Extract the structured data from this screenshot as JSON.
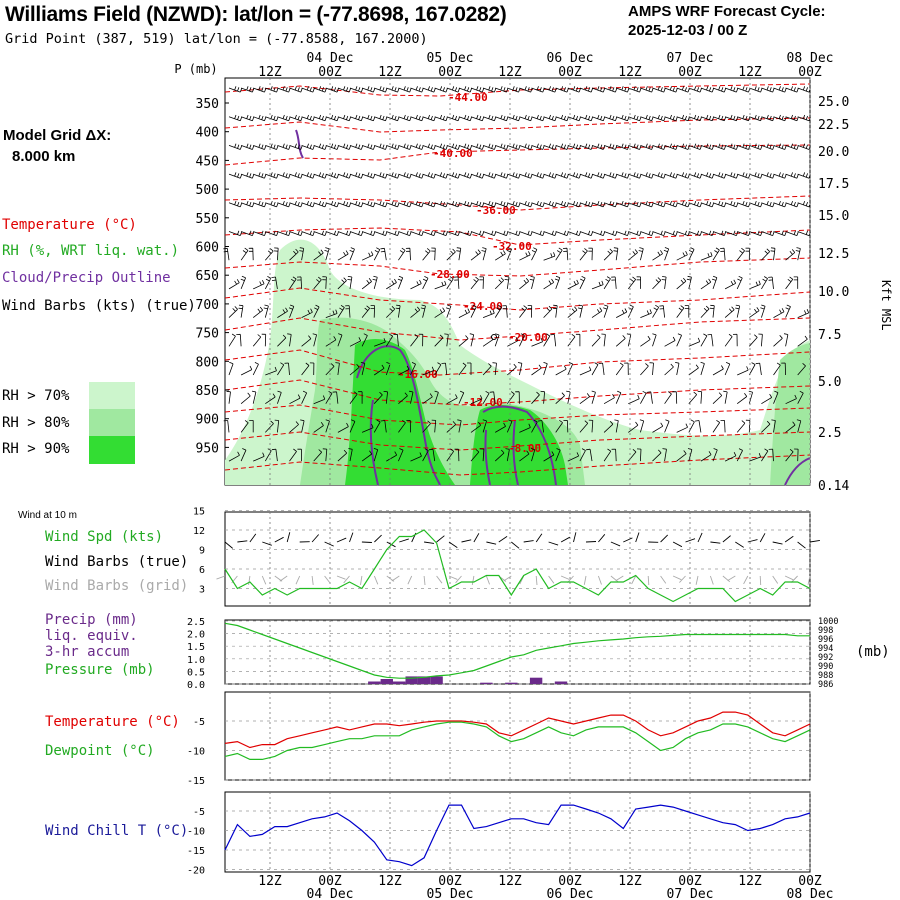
{
  "header": {
    "title": "Williams Field (NZWD):  lat/lon = (-77.8698, 167.0282)",
    "grid_point": "Grid Point (387, 519) lat/lon = (-77.8588, 167.2000)",
    "cycle_label": "AMPS WRF Forecast Cycle:",
    "cycle_value": "2025-12-03 / 00  Z"
  },
  "model_grid": {
    "label": "Model Grid ΔX:",
    "value": "8.000 km"
  },
  "sounding_legend": {
    "temperature": "Temperature (°C)",
    "rh": "RH (%, WRT liq. wat.)",
    "cloud": "Cloud/Precip Outline",
    "wind": "Wind Barbs (kts) (true)",
    "rh70": "RH > 70%",
    "rh80": "RH > 80%",
    "rh90": "RH > 90%"
  },
  "surface_legend": {
    "wind_title": "Wind at 10 m",
    "wind_spd": "Wind Spd (kts)",
    "barbs_true": "Wind Barbs (true)",
    "barbs_grid": "Wind Barbs (grid)",
    "precip1": "Precip (mm)",
    "precip2": "liq. equiv.",
    "precip3": "3-hr accum",
    "pressure": "Pressure (mb)",
    "pressure_unit": "(mb)",
    "temperature": "Temperature (°C)",
    "dewpoint": "Dewpoint (°C)",
    "windchill": "Wind Chill T (°C)"
  },
  "colors": {
    "temperature": "#e00000",
    "rh_green": "#22bb22",
    "rh70": "#ccf5cc",
    "rh80": "#a0e8a0",
    "rh90": "#33dd33",
    "cloud": "#7030a0",
    "wind": "#000000",
    "wind_grid": "#aaaaaa",
    "windchill": "#0000cc",
    "precip": "#6a2a8a",
    "grid": "#888888"
  },
  "chart_data": [
    {
      "type": "heatmap",
      "time_axis": {
        "top_hours": [
          "12Z",
          "00Z",
          "12Z",
          "00Z",
          "12Z",
          "00Z",
          "12Z",
          "00Z",
          "12Z",
          "00Z"
        ],
        "dates": [
          "04 Dec",
          "05 Dec",
          "06 Dec",
          "07 Dec",
          "08 Dec"
        ]
      },
      "y_title": "P (mb)",
      "pressure_levels": [
        350,
        400,
        450,
        500,
        550,
        600,
        650,
        700,
        750,
        800,
        850,
        900,
        950
      ],
      "height_labels": [
        "25.0",
        "22.5",
        "20.0",
        "17.5",
        "15.0",
        "12.5",
        "10.0",
        "7.5",
        "5.0",
        "2.5",
        "0.14"
      ],
      "height_title": "Kft MSL",
      "isotherm_labels": [
        "-44.00",
        "-40.00",
        "-36.00",
        "-32.00",
        "-28.00",
        "-24.00",
        "-20.00",
        "-16.00",
        "-12.00",
        "-8.00"
      ]
    },
    {
      "type": "line",
      "y_ticks": [
        "15",
        "12",
        "9",
        "6",
        "3"
      ],
      "series": [
        {
          "name": "Wind Spd (kts)",
          "values": [
            6,
            3,
            4,
            2,
            3,
            2,
            3,
            3,
            3,
            3,
            4,
            3,
            6,
            9,
            11,
            11,
            12,
            10,
            3,
            4,
            4,
            5,
            5,
            2,
            5,
            6,
            3,
            4,
            4,
            3,
            2,
            4,
            4,
            5,
            3,
            2,
            1,
            2,
            3,
            3,
            3,
            1,
            2,
            3,
            2,
            4,
            4,
            3
          ]
        }
      ]
    },
    {
      "type": "line",
      "y_ticks_left": [
        "2.5",
        "2.0",
        "1.5",
        "1.0",
        "0.5",
        "0.0"
      ],
      "y_ticks_right": [
        "1000",
        "998",
        "996",
        "994",
        "992",
        "990",
        "988",
        "986"
      ],
      "series": [
        {
          "name": "Pressure (mb)",
          "values": [
            999.5,
            999.0,
            998.0,
            997.0,
            996.0,
            995.0,
            994.0,
            993.0,
            992.0,
            991.0,
            990.0,
            989.0,
            988.0,
            987.5,
            987.3,
            987.3,
            987.5,
            987.8,
            988.0,
            988.5,
            989.0,
            990.0,
            991.0,
            992.0,
            992.5,
            993.5,
            994.0,
            994.5,
            995.0,
            995.3,
            995.6,
            995.8,
            996.0,
            996.3,
            996.5,
            996.6,
            996.8,
            997.0,
            997.0,
            997.0,
            997.0,
            997.0,
            997.0,
            997.0,
            997.0,
            997.0,
            996.7,
            996.7
          ]
        },
        {
          "name": "Precip (mm)",
          "values": [
            0,
            0,
            0,
            0,
            0,
            0,
            0,
            0,
            0,
            0,
            0,
            0,
            0.1,
            0.2,
            0.1,
            0.3,
            0.3,
            0.3,
            0,
            0,
            0,
            0.05,
            0,
            0.05,
            0,
            0.25,
            0,
            0.1,
            0,
            0,
            0,
            0,
            0,
            0,
            0,
            0,
            0,
            0,
            0,
            0,
            0,
            0,
            0,
            0,
            0,
            0,
            0,
            0
          ]
        }
      ]
    },
    {
      "type": "line",
      "y_ticks": [
        "-5",
        "-10",
        "-15"
      ],
      "series": [
        {
          "name": "Temperature (°C)",
          "values": [
            -8.8,
            -8.5,
            -9.5,
            -9.0,
            -9.0,
            -8.0,
            -7.5,
            -7.0,
            -6.5,
            -6.0,
            -6.5,
            -6.0,
            -5.5,
            -5.5,
            -5.8,
            -5.5,
            -5.2,
            -5.0,
            -5.0,
            -5.0,
            -5.2,
            -5.5,
            -7.0,
            -7.5,
            -6.5,
            -5.5,
            -4.5,
            -5.0,
            -5.5,
            -5.0,
            -4.5,
            -4.0,
            -4.0,
            -5.0,
            -6.5,
            -7.5,
            -7.0,
            -6.0,
            -5.0,
            -4.5,
            -3.5,
            -3.5,
            -4.0,
            -5.5,
            -7.0,
            -7.5,
            -6.5,
            -5.5
          ]
        },
        {
          "name": "Dewpoint (°C)",
          "values": [
            -11.0,
            -10.5,
            -11.5,
            -11.5,
            -11.0,
            -10.0,
            -9.5,
            -9.5,
            -9.0,
            -8.5,
            -8.0,
            -8.0,
            -7.5,
            -7.5,
            -7.5,
            -6.5,
            -6.0,
            -5.5,
            -5.2,
            -5.2,
            -5.5,
            -6.0,
            -7.5,
            -8.5,
            -8.0,
            -7.0,
            -6.0,
            -7.0,
            -7.5,
            -6.5,
            -6.0,
            -6.0,
            -6.0,
            -7.0,
            -8.5,
            -10.0,
            -9.5,
            -8.0,
            -7.0,
            -6.5,
            -5.5,
            -5.5,
            -6.0,
            -7.0,
            -8.0,
            -8.5,
            -7.5,
            -6.5
          ]
        }
      ]
    },
    {
      "type": "line",
      "y_ticks": [
        "-5",
        "-10",
        "-15",
        "-20"
      ],
      "series": [
        {
          "name": "Wind Chill T (°C)",
          "values": [
            -15.0,
            -8.5,
            -11.5,
            -11.0,
            -9.0,
            -9.0,
            -8.0,
            -7.0,
            -6.5,
            -5.5,
            -7.5,
            -10.0,
            -13.0,
            -17.5,
            -18.0,
            -19.0,
            -17.0,
            -10.0,
            -3.5,
            -3.5,
            -9.5,
            -9.0,
            -8.0,
            -7.0,
            -7.0,
            -8.0,
            -8.5,
            -3.5,
            -3.5,
            -4.5,
            -5.5,
            -7.0,
            -9.5,
            -4.5,
            -4.0,
            -3.5,
            -4.0,
            -5.0,
            -6.0,
            -7.0,
            -8.0,
            -8.5,
            -10.0,
            -9.5,
            -8.5,
            -7.0,
            -6.5,
            -5.5
          ]
        }
      ]
    }
  ],
  "bottom_axis": {
    "hours": [
      "12Z",
      "00Z",
      "12Z",
      "00Z",
      "12Z",
      "00Z",
      "12Z",
      "00Z",
      "12Z",
      "00Z"
    ],
    "dates": [
      "04 Dec",
      "05 Dec",
      "06 Dec",
      "07 Dec",
      "08 Dec"
    ]
  }
}
